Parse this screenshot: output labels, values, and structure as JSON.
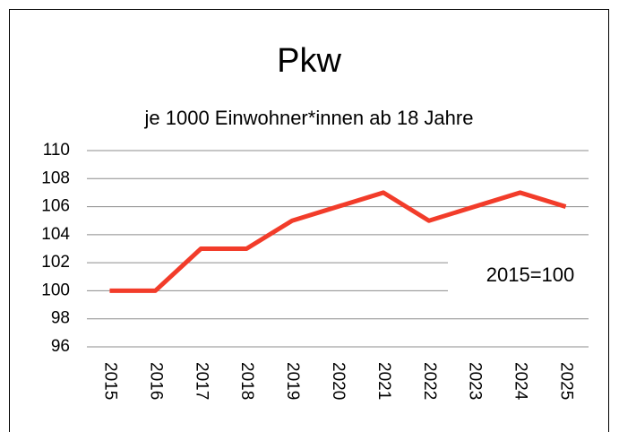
{
  "chart_data": {
    "type": "line",
    "title": "Pkw",
    "subtitle": "je 1000 Einwohner*innen ab 18 Jahre",
    "annotation": "2015=100",
    "categories": [
      "2015",
      "2016",
      "2017",
      "2018",
      "2019",
      "2020",
      "2021",
      "2022",
      "2023",
      "2024",
      "2025"
    ],
    "values": [
      100,
      100,
      103,
      103,
      105,
      106,
      107,
      105,
      106,
      107,
      106
    ],
    "color": "#f23c2a",
    "ylim": [
      96,
      110
    ],
    "yticks": [
      96,
      98,
      100,
      102,
      104,
      106,
      108,
      110
    ],
    "grid": true
  }
}
